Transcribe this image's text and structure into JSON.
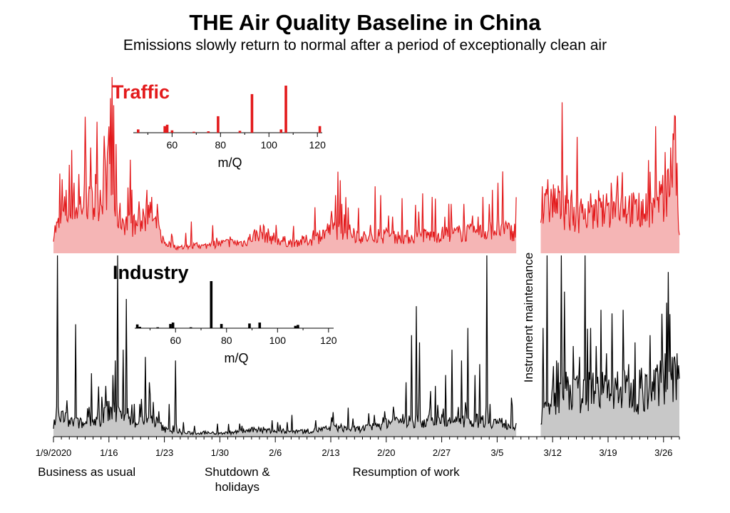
{
  "title": "THE Air Quality Baseline in China",
  "subtitle": "Emissions slowly return to normal after a period of exceptionally clean air",
  "chart_data": {
    "type": "area",
    "x_axis": {
      "start": "1/9/2020",
      "end": "3/28/2020",
      "unit": "days since 1/9/2020",
      "range": [
        0,
        79
      ],
      "tick_labels": [
        "1/9/2020",
        "1/16",
        "1/23",
        "1/30",
        "2/6",
        "2/13",
        "2/20",
        "2/27",
        "3/5",
        "3/12",
        "3/19",
        "3/26"
      ],
      "tick_days": [
        0,
        7,
        14,
        21,
        28,
        35,
        42,
        49,
        56,
        63,
        70,
        77
      ]
    },
    "gap": {
      "label": "Instrument maintenance",
      "from_day": 58.5,
      "to_day": 61.5
    },
    "periods": [
      {
        "label": "Business as usual",
        "day": 4.2
      },
      {
        "label": "Shutdown &\nholidays",
        "day": 23.2
      },
      {
        "label": "Resumption of work",
        "day": 44.5
      }
    ],
    "series": [
      {
        "name": "Traffic",
        "color": "#e31a1c",
        "fill": "#f5b5b5",
        "ylim": [
          0,
          100
        ],
        "base_level": 10,
        "anchors": [
          [
            0,
            12
          ],
          [
            1,
            18
          ],
          [
            1.5,
            25
          ],
          [
            2,
            20
          ],
          [
            3,
            26
          ],
          [
            4,
            30
          ],
          [
            5,
            25
          ],
          [
            6,
            35
          ],
          [
            7,
            45
          ],
          [
            7.5,
            30
          ],
          [
            8,
            22
          ],
          [
            9,
            18
          ],
          [
            10,
            15
          ],
          [
            11,
            18
          ],
          [
            12,
            22
          ],
          [
            13,
            15
          ],
          [
            14,
            6
          ],
          [
            16,
            3
          ],
          [
            17,
            4
          ],
          [
            19,
            4
          ],
          [
            20,
            5
          ],
          [
            22,
            6
          ],
          [
            24,
            6
          ],
          [
            26,
            12
          ],
          [
            28,
            8
          ],
          [
            30,
            6
          ],
          [
            33,
            8
          ],
          [
            35,
            14
          ],
          [
            37,
            12
          ],
          [
            40,
            8
          ],
          [
            42,
            10
          ],
          [
            44,
            9
          ],
          [
            47,
            10
          ],
          [
            50,
            11
          ],
          [
            54,
            12
          ],
          [
            56,
            14
          ],
          [
            58,
            12
          ],
          [
            61.5,
            22
          ],
          [
            63,
            30
          ],
          [
            65,
            22
          ],
          [
            67,
            20
          ],
          [
            70,
            24
          ],
          [
            72,
            28
          ],
          [
            74,
            22
          ],
          [
            76,
            25
          ],
          [
            78,
            40
          ],
          [
            78.5,
            55
          ],
          [
            79,
            8
          ]
        ],
        "spikes": [
          [
            1.1,
            42
          ],
          [
            1.6,
            36
          ],
          [
            2.6,
            40
          ],
          [
            3.2,
            45
          ],
          [
            4.1,
            48
          ],
          [
            4.7,
            60
          ],
          [
            5.3,
            45
          ],
          [
            7.0,
            72
          ],
          [
            7.2,
            88
          ],
          [
            7.4,
            100
          ],
          [
            7.6,
            84
          ],
          [
            7.9,
            62
          ],
          [
            11.8,
            36
          ],
          [
            12.4,
            32
          ],
          [
            13.1,
            28
          ],
          [
            17.4,
            18
          ],
          [
            26.5,
            16
          ],
          [
            35.1,
            24
          ],
          [
            35.6,
            33
          ],
          [
            36.4,
            28
          ],
          [
            37.2,
            26
          ],
          [
            40.6,
            38
          ],
          [
            41.3,
            33
          ],
          [
            46.6,
            34
          ],
          [
            47.8,
            32
          ],
          [
            49.9,
            28
          ],
          [
            51.8,
            28
          ],
          [
            54.2,
            32
          ],
          [
            55.4,
            36
          ],
          [
            56.1,
            40
          ],
          [
            57.1,
            18
          ],
          [
            61.7,
            38
          ],
          [
            62.4,
            42
          ],
          [
            64.6,
            33
          ],
          [
            65.4,
            36
          ],
          [
            66.8,
            28
          ],
          [
            67.8,
            34
          ],
          [
            69.8,
            34
          ],
          [
            70.4,
            40
          ],
          [
            71.2,
            44
          ],
          [
            71.8,
            46
          ],
          [
            73.3,
            28
          ],
          [
            74.8,
            34
          ],
          [
            76.2,
            30
          ],
          [
            76.8,
            34
          ],
          [
            77.6,
            48
          ],
          [
            77.9,
            60
          ],
          [
            78.2,
            68
          ],
          [
            78.4,
            78
          ]
        ]
      },
      {
        "name": "Industry",
        "color": "#000000",
        "fill": "#c8c8c8",
        "ylim": [
          0,
          100
        ],
        "base_level": 5,
        "anchors": [
          [
            0,
            6
          ],
          [
            1,
            12
          ],
          [
            2,
            8
          ],
          [
            4,
            7
          ],
          [
            6,
            10
          ],
          [
            7,
            15
          ],
          [
            8,
            12
          ],
          [
            10,
            8
          ],
          [
            12,
            10
          ],
          [
            13,
            8
          ],
          [
            14,
            4
          ],
          [
            16,
            2
          ],
          [
            18,
            2
          ],
          [
            20,
            2
          ],
          [
            22,
            2
          ],
          [
            24,
            3
          ],
          [
            26,
            4
          ],
          [
            28,
            3
          ],
          [
            30,
            3
          ],
          [
            32,
            3
          ],
          [
            34,
            4
          ],
          [
            36,
            5
          ],
          [
            38,
            4
          ],
          [
            40,
            5
          ],
          [
            42,
            8
          ],
          [
            44,
            9
          ],
          [
            46,
            8
          ],
          [
            48,
            9
          ],
          [
            50,
            8
          ],
          [
            52,
            8
          ],
          [
            54,
            9
          ],
          [
            56,
            8
          ],
          [
            58,
            6
          ],
          [
            61.5,
            10
          ],
          [
            63,
            20
          ],
          [
            65,
            26
          ],
          [
            67,
            22
          ],
          [
            68,
            28
          ],
          [
            70,
            24
          ],
          [
            72,
            26
          ],
          [
            74,
            22
          ],
          [
            76,
            28
          ],
          [
            78,
            35
          ],
          [
            79,
            30
          ]
        ],
        "spikes": [
          [
            0.5,
            100
          ],
          [
            1.7,
            20
          ],
          [
            2.8,
            62
          ],
          [
            4.8,
            35
          ],
          [
            5.6,
            16
          ],
          [
            6.1,
            22
          ],
          [
            6.6,
            28
          ],
          [
            7.5,
            34
          ],
          [
            7.8,
            42
          ],
          [
            8.1,
            100
          ],
          [
            8.8,
            48
          ],
          [
            9.2,
            76
          ],
          [
            10.9,
            18
          ],
          [
            11.6,
            44
          ],
          [
            12.1,
            30
          ],
          [
            13.3,
            14
          ],
          [
            14.6,
            18
          ],
          [
            15.4,
            42
          ],
          [
            16.4,
            8
          ],
          [
            17.8,
            6
          ],
          [
            22.1,
            7
          ],
          [
            23.8,
            6
          ],
          [
            27.6,
            9
          ],
          [
            28.3,
            8
          ],
          [
            29.5,
            8
          ],
          [
            30.1,
            12
          ],
          [
            33.1,
            9
          ],
          [
            35.2,
            8
          ],
          [
            37.2,
            16
          ],
          [
            37.8,
            10
          ],
          [
            40.5,
            12
          ],
          [
            41.8,
            14
          ],
          [
            43.2,
            10
          ],
          [
            44.5,
            30
          ],
          [
            45.2,
            56
          ],
          [
            45.8,
            72
          ],
          [
            46.2,
            52
          ],
          [
            47.5,
            16
          ],
          [
            48.2,
            28
          ],
          [
            49.5,
            34
          ],
          [
            50.3,
            48
          ],
          [
            51.5,
            42
          ],
          [
            52.3,
            60
          ],
          [
            53.2,
            34
          ],
          [
            53.8,
            40
          ],
          [
            54.7,
            100
          ],
          [
            55.1,
            18
          ],
          [
            61.8,
            60
          ],
          [
            62.3,
            100
          ],
          [
            63.5,
            42
          ],
          [
            64.1,
            100
          ],
          [
            64.5,
            80
          ],
          [
            65.6,
            50
          ],
          [
            66.4,
            44
          ],
          [
            67.1,
            100
          ],
          [
            67.8,
            60
          ],
          [
            68.5,
            50
          ],
          [
            69.1,
            70
          ],
          [
            69.8,
            46
          ],
          [
            70.5,
            68
          ],
          [
            71.2,
            36
          ],
          [
            71.9,
            70
          ],
          [
            72.6,
            40
          ],
          [
            73.4,
            52
          ],
          [
            74.2,
            38
          ],
          [
            75.3,
            56
          ],
          [
            76.6,
            42
          ],
          [
            77.2,
            46
          ],
          [
            78.1,
            44
          ],
          [
            78.7,
            46
          ],
          [
            79.0,
            32
          ]
        ]
      }
    ],
    "insets": [
      {
        "name": "Traffic mass spectrum",
        "series": "Traffic",
        "label": "Traffic",
        "xlabel": "m/Q",
        "xlim": [
          44,
          122
        ],
        "tick_labels": [
          "60",
          "80",
          "100",
          "120"
        ],
        "tick_values": [
          60,
          80,
          100,
          120
        ],
        "ylim": [
          0,
          1
        ],
        "bars": [
          [
            46,
            0.07
          ],
          [
            57,
            0.14
          ],
          [
            58,
            0.17
          ],
          [
            60,
            0.05
          ],
          [
            69,
            0.02
          ],
          [
            75,
            0.03
          ],
          [
            79,
            0.35
          ],
          [
            88,
            0.04
          ],
          [
            93,
            0.82
          ],
          [
            105,
            0.07
          ],
          [
            107,
            1.0
          ],
          [
            121,
            0.14
          ]
        ]
      },
      {
        "name": "Industry mass spectrum",
        "series": "Industry",
        "label": "Industry",
        "xlabel": "m/Q",
        "xlim": [
          44,
          122
        ],
        "tick_labels": [
          "60",
          "80",
          "100",
          "120"
        ],
        "tick_values": [
          60,
          80,
          100,
          120
        ],
        "ylim": [
          0,
          1
        ],
        "bars": [
          [
            45,
            0.08
          ],
          [
            46,
            0.03
          ],
          [
            53,
            0.02
          ],
          [
            58,
            0.09
          ],
          [
            59,
            0.12
          ],
          [
            66,
            0.02
          ],
          [
            74,
            1.0
          ],
          [
            78,
            0.09
          ],
          [
            89,
            0.1
          ],
          [
            93,
            0.12
          ],
          [
            107,
            0.05
          ],
          [
            108,
            0.07
          ]
        ]
      }
    ]
  }
}
